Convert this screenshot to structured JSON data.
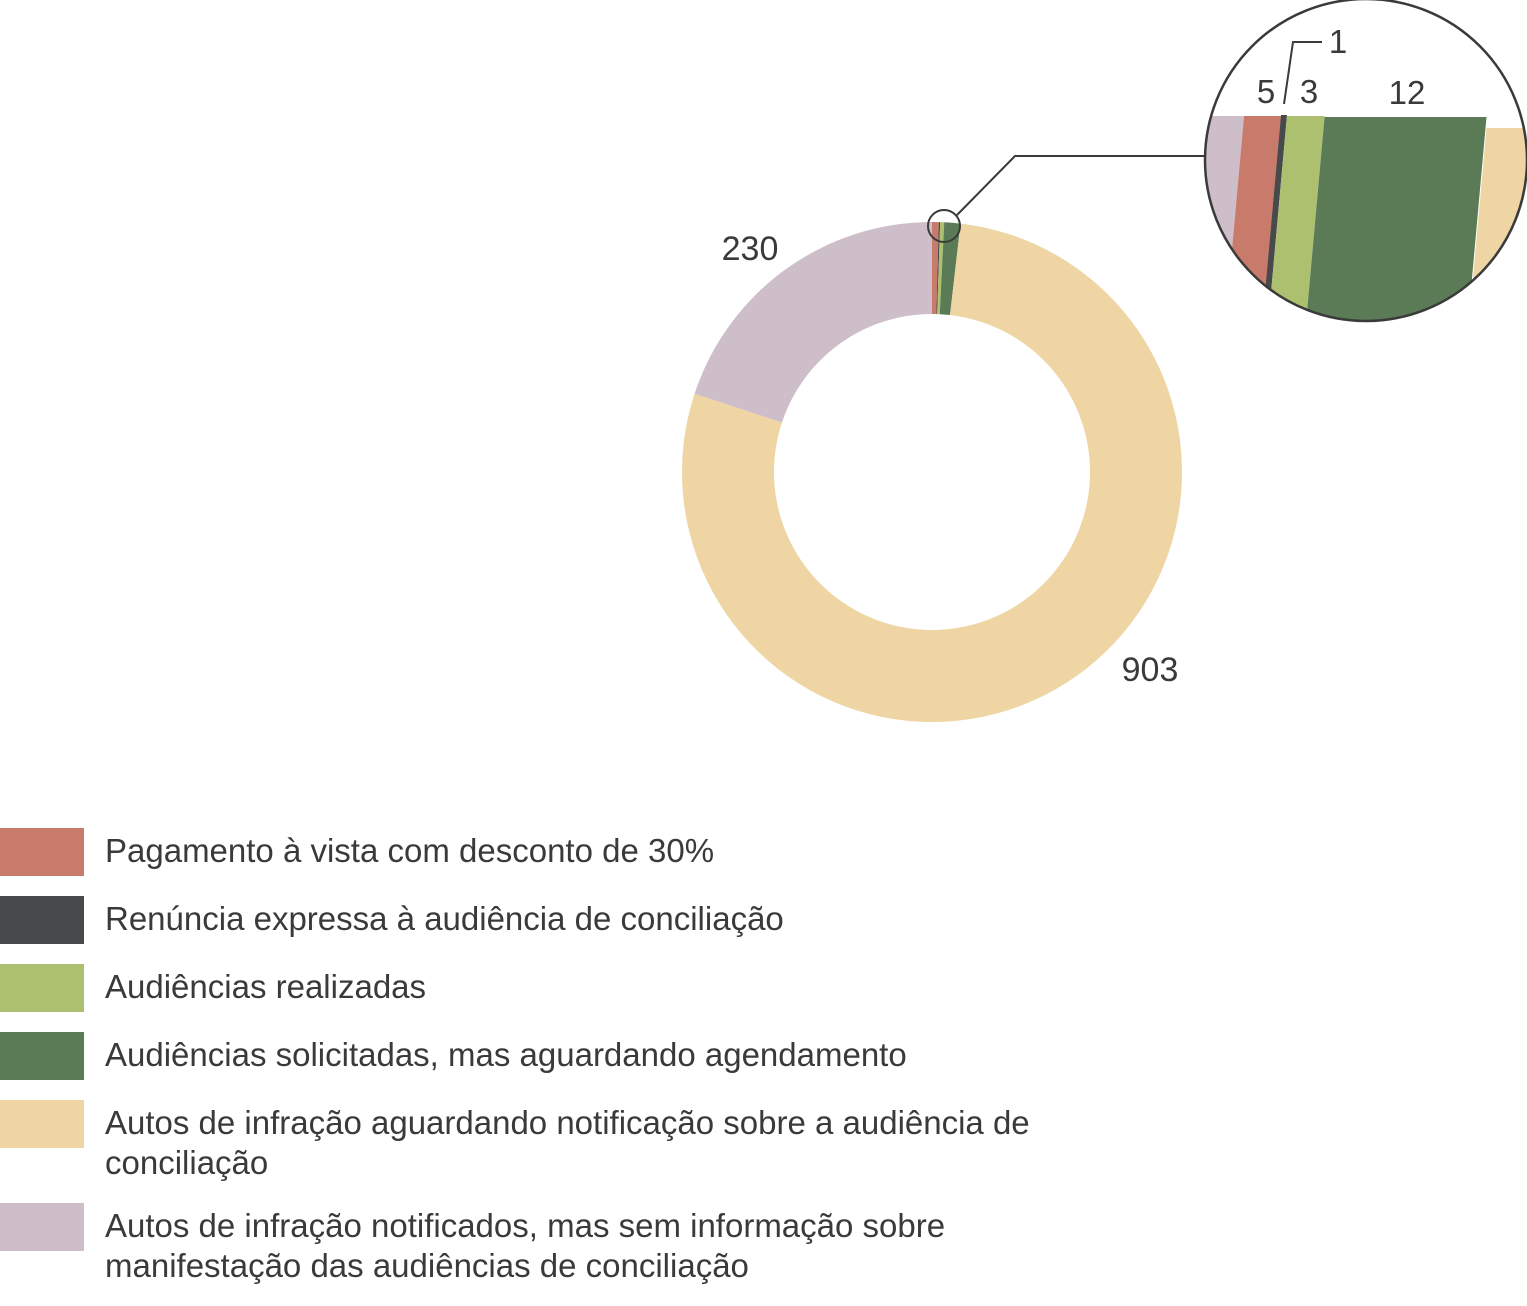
{
  "chart_data": {
    "type": "donut",
    "series": [
      {
        "name": "Pagamento à vista com desconto de 30%",
        "value": 5,
        "color": "#c97b6b"
      },
      {
        "name": "Renúncia expressa à audiência de conciliação",
        "value": 1,
        "color": "#48494b"
      },
      {
        "name": "Audiências realizadas",
        "value": 3,
        "color": "#adc06f"
      },
      {
        "name": "Audiências solicitadas, mas aguardando agendamento",
        "value": 12,
        "color": "#5a7b55"
      },
      {
        "name": "Autos de infração aguardando notificação sobre a audiência de conciliação",
        "value": 903,
        "color": "#eed5a3"
      },
      {
        "name": "Autos de infração notificados, mas sem informação sobre manifestação das audiências de conciliação",
        "value": 230,
        "color": "#cdbec9"
      }
    ],
    "data_labels": [
      "5",
      "1",
      "3",
      "12",
      "903",
      "230"
    ],
    "zoom_inset": true,
    "legend_position": "bottom"
  }
}
